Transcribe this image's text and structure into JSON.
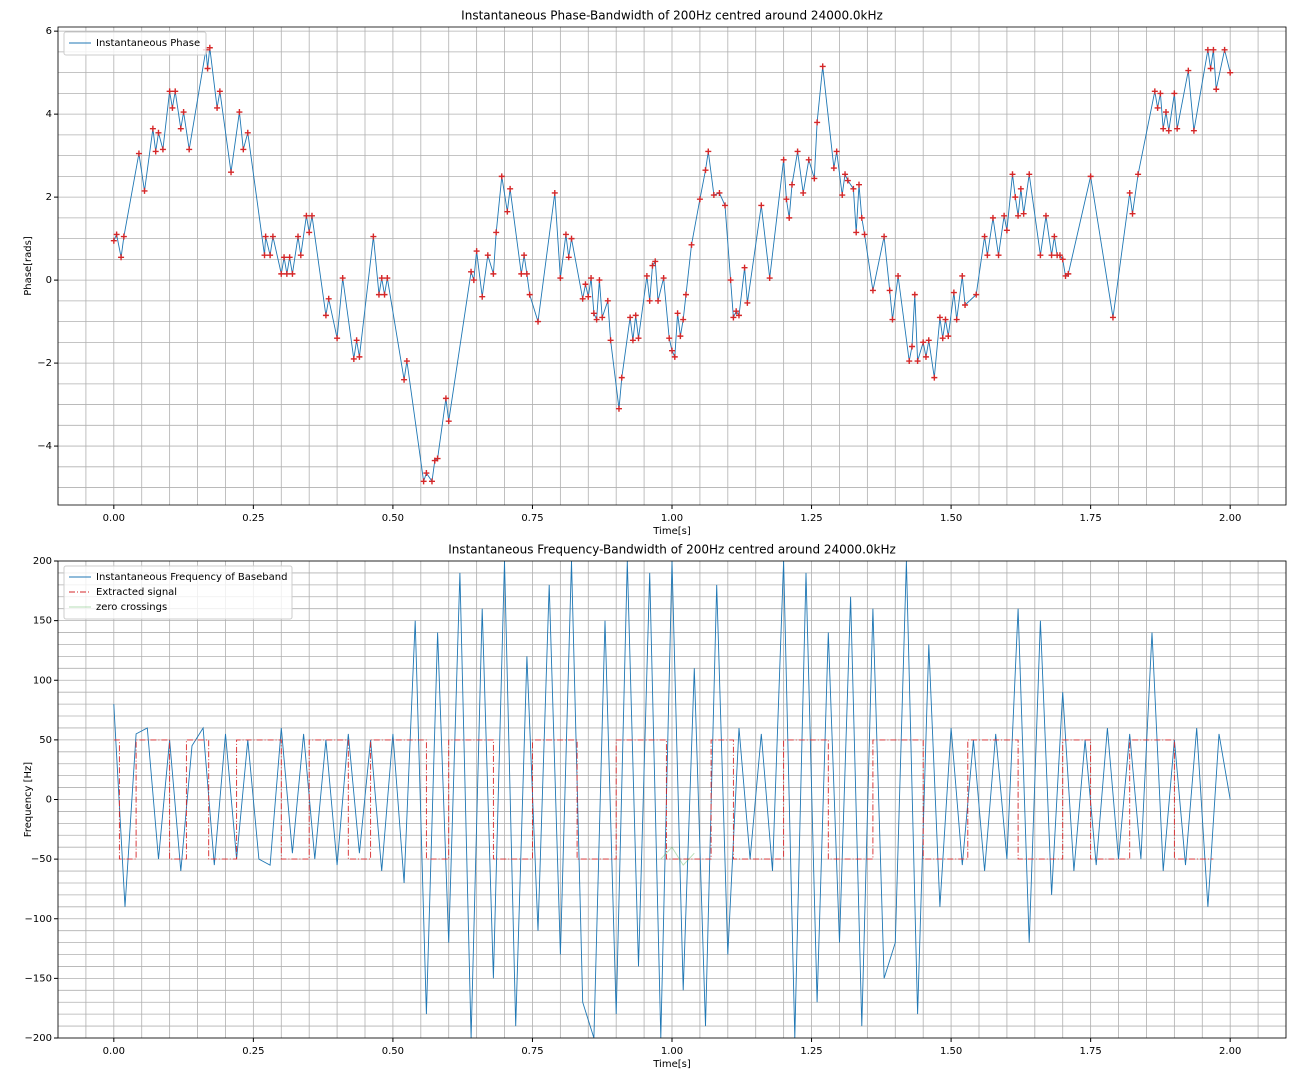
{
  "chart_data": [
    {
      "type": "line",
      "title": "Instantaneous Phase-Bandwidth of 200Hz centred around 24000.0kHz",
      "xlabel": "Time[s]",
      "ylabel": "Phase[rads]",
      "xlim": [
        -0.1,
        2.1
      ],
      "ylim": [
        -5.42,
        6.1
      ],
      "xticks": [
        {
          "value": 0,
          "label": "0.00"
        },
        {
          "value": 0.25,
          "label": "0.25"
        },
        {
          "value": 0.5,
          "label": "0.50"
        },
        {
          "value": 0.75,
          "label": "0.75"
        },
        {
          "value": 1,
          "label": "1.00"
        },
        {
          "value": 1.25,
          "label": "1.25"
        },
        {
          "value": 1.5,
          "label": "1.50"
        },
        {
          "value": 1.75,
          "label": "1.75"
        },
        {
          "value": 2,
          "label": "2.00"
        }
      ],
      "yticks": [
        {
          "value": -4,
          "label": "−4"
        },
        {
          "value": -2,
          "label": "−2"
        },
        0,
        2,
        4,
        6
      ],
      "xminor": [
        -0.1,
        -0.05,
        0,
        0.05,
        0.1,
        0.15,
        0.2,
        0.25,
        0.3,
        0.35,
        0.4,
        0.45,
        0.5,
        0.55,
        0.6,
        0.65,
        0.7,
        0.75,
        0.8,
        0.85,
        0.9,
        0.95,
        1,
        1.05,
        1.1,
        1.15,
        1.2,
        1.25,
        1.3,
        1.35,
        1.4,
        1.45,
        1.5,
        1.55,
        1.6,
        1.65,
        1.7,
        1.75,
        1.8,
        1.85,
        1.9,
        1.95,
        2,
        2.05,
        2.1
      ],
      "yminor": [
        -5,
        -4.5,
        -4,
        -3.5,
        -3,
        -2.5,
        -2,
        -1.5,
        -1,
        -0.5,
        0,
        0.5,
        1,
        1.5,
        2,
        2.5,
        3,
        3.5,
        4,
        4.5,
        5,
        5.5,
        6
      ],
      "grid": true,
      "legend": "upper left",
      "series": [
        {
          "name": "Instantaneous Phase",
          "color": "#1f77b4",
          "marker_color": "#d62728",
          "markers": true,
          "x": [
            0,
            0.005,
            0.013,
            0.018,
            0.045,
            0.055,
            0.07,
            0.075,
            0.08,
            0.088,
            0.1,
            0.105,
            0.11,
            0.12,
            0.125,
            0.135,
            0.165,
            0.168,
            0.172,
            0.185,
            0.19,
            0.21,
            0.225,
            0.232,
            0.24,
            0.27,
            0.272,
            0.28,
            0.285,
            0.3,
            0.305,
            0.31,
            0.315,
            0.32,
            0.33,
            0.335,
            0.345,
            0.35,
            0.355,
            0.38,
            0.385,
            0.4,
            0.41,
            0.43,
            0.435,
            0.44,
            0.465,
            0.475,
            0.48,
            0.485,
            0.49,
            0.52,
            0.525,
            0.555,
            0.56,
            0.57,
            0.575,
            0.58,
            0.595,
            0.6,
            0.64,
            0.645,
            0.65,
            0.66,
            0.67,
            0.68,
            0.685,
            0.695,
            0.705,
            0.71,
            0.73,
            0.735,
            0.74,
            0.745,
            0.76,
            0.79,
            0.8,
            0.81,
            0.815,
            0.82,
            0.84,
            0.845,
            0.85,
            0.855,
            0.86,
            0.865,
            0.87,
            0.875,
            0.885,
            0.89,
            0.905,
            0.91,
            0.925,
            0.93,
            0.935,
            0.94,
            0.955,
            0.96,
            0.965,
            0.97,
            0.975,
            0.985,
            0.995,
            1,
            1.005,
            1.01,
            1.015,
            1.02,
            1.025,
            1.035,
            1.05,
            1.06,
            1.065,
            1.075,
            1.085,
            1.095,
            1.105,
            1.11,
            1.115,
            1.12,
            1.13,
            1.135,
            1.16,
            1.175,
            1.2,
            1.205,
            1.21,
            1.215,
            1.225,
            1.235,
            1.245,
            1.255,
            1.26,
            1.27,
            1.29,
            1.295,
            1.305,
            1.31,
            1.315,
            1.325,
            1.33,
            1.335,
            1.34,
            1.345,
            1.36,
            1.38,
            1.39,
            1.395,
            1.405,
            1.425,
            1.43,
            1.435,
            1.44,
            1.45,
            1.455,
            1.46,
            1.47,
            1.48,
            1.485,
            1.49,
            1.495,
            1.505,
            1.51,
            1.52,
            1.525,
            1.545,
            1.56,
            1.565,
            1.575,
            1.585,
            1.595,
            1.6,
            1.61,
            1.615,
            1.62,
            1.625,
            1.63,
            1.64,
            1.66,
            1.67,
            1.68,
            1.685,
            1.69,
            1.695,
            1.7,
            1.705,
            1.71,
            1.75,
            1.79,
            1.82,
            1.825,
            1.835,
            1.865,
            1.87,
            1.875,
            1.88,
            1.885,
            1.89,
            1.9,
            1.905,
            1.925,
            1.935,
            1.96,
            1.965,
            1.97,
            1.975,
            1.99,
            2
          ],
          "values": [
            0.95,
            1.1,
            0.55,
            1.05,
            3.05,
            2.15,
            3.65,
            3.1,
            3.55,
            3.15,
            4.55,
            4.15,
            4.55,
            3.65,
            4.05,
            3.15,
            5.55,
            5.1,
            5.6,
            4.15,
            4.55,
            2.6,
            4.05,
            3.15,
            3.55,
            0.6,
            1.05,
            0.6,
            1.05,
            0.15,
            0.55,
            0.15,
            0.55,
            0.15,
            1.05,
            0.6,
            1.55,
            1.15,
            1.55,
            -0.85,
            -0.45,
            -1.4,
            0.05,
            -1.9,
            -1.45,
            -1.85,
            1.05,
            -0.35,
            0.05,
            -0.35,
            0.05,
            -2.4,
            -1.95,
            -4.85,
            -4.65,
            -4.85,
            -4.35,
            -4.3,
            -2.85,
            -3.4,
            0.2,
            0,
            0.7,
            -0.4,
            0.6,
            0.15,
            1.15,
            2.5,
            1.65,
            2.2,
            0.15,
            0.6,
            0.15,
            -0.35,
            -1,
            2.1,
            0.05,
            1.1,
            0.55,
            1,
            -0.45,
            -0.1,
            -0.4,
            0.05,
            -0.8,
            -0.95,
            0,
            -0.9,
            -0.5,
            -1.45,
            -3.1,
            -2.35,
            -0.9,
            -1.45,
            -0.85,
            -1.4,
            0.1,
            -0.5,
            0.35,
            0.45,
            -0.5,
            0.05,
            -1.4,
            -1.7,
            -1.85,
            -0.8,
            -1.35,
            -0.95,
            -0.35,
            0.85,
            1.95,
            2.65,
            3.1,
            2.05,
            2.1,
            1.8,
            0,
            -0.9,
            -0.75,
            -0.85,
            0.3,
            -0.55,
            1.8,
            0.05,
            2.9,
            1.95,
            1.5,
            2.3,
            3.1,
            2.1,
            2.9,
            2.45,
            3.8,
            5.15,
            2.7,
            3.1,
            2.05,
            2.55,
            2.4,
            2.2,
            1.15,
            2.3,
            1.5,
            1.1,
            -0.25,
            1.05,
            -0.25,
            -0.95,
            0.1,
            -1.95,
            -1.6,
            -0.35,
            -1.95,
            -1.5,
            -1.85,
            -1.45,
            -2.35,
            -0.9,
            -1.4,
            -0.95,
            -1.35,
            -0.3,
            -0.95,
            0.1,
            -0.6,
            -0.35,
            1.05,
            0.6,
            1.5,
            0.6,
            1.55,
            1.2,
            2.55,
            2,
            1.55,
            2.2,
            1.6,
            2.55,
            0.6,
            1.55,
            0.6,
            1.05,
            0.6,
            0.6,
            0.5,
            0.1,
            0.15,
            2.5,
            -0.9,
            2.1,
            1.6,
            2.55,
            4.55,
            4.15,
            4.5,
            3.65,
            4.05,
            3.6,
            4.5,
            3.65,
            5.05,
            3.6,
            5.55,
            5.1,
            5.55,
            4.6,
            5.55,
            5
          ]
        }
      ]
    },
    {
      "type": "line",
      "title": "Instantaneous Frequency-Bandwidth of 200Hz centred around 24000.0kHz",
      "xlabel": "Time[s]",
      "ylabel": "Frequency [Hz]",
      "xlim": [
        -0.1,
        2.1
      ],
      "ylim": [
        -200,
        200
      ],
      "xticks": [
        {
          "value": 0,
          "label": "0.00"
        },
        {
          "value": 0.25,
          "label": "0.25"
        },
        {
          "value": 0.5,
          "label": "0.50"
        },
        {
          "value": 0.75,
          "label": "0.75"
        },
        {
          "value": 1,
          "label": "1.00"
        },
        {
          "value": 1.25,
          "label": "1.25"
        },
        {
          "value": 1.5,
          "label": "1.50"
        },
        {
          "value": 1.75,
          "label": "1.75"
        },
        {
          "value": 2,
          "label": "2.00"
        }
      ],
      "yticks": [
        {
          "value": -200,
          "label": "−200"
        },
        {
          "value": -150,
          "label": "−150"
        },
        {
          "value": -100,
          "label": "−100"
        },
        {
          "value": -50,
          "label": "−50"
        },
        0,
        50,
        100,
        150,
        200
      ],
      "xminor": [
        -0.1,
        -0.05,
        0,
        0.05,
        0.1,
        0.15,
        0.2,
        0.25,
        0.3,
        0.35,
        0.4,
        0.45,
        0.5,
        0.55,
        0.6,
        0.65,
        0.7,
        0.75,
        0.8,
        0.85,
        0.9,
        0.95,
        1,
        1.05,
        1.1,
        1.15,
        1.2,
        1.25,
        1.3,
        1.35,
        1.4,
        1.45,
        1.5,
        1.55,
        1.6,
        1.65,
        1.7,
        1.75,
        1.8,
        1.85,
        1.9,
        1.95,
        2,
        2.05,
        2.1
      ],
      "yminor": [
        -200,
        -190,
        -180,
        -170,
        -160,
        -150,
        -140,
        -130,
        -120,
        -110,
        -100,
        -90,
        -80,
        -70,
        -60,
        -50,
        -40,
        -30,
        -20,
        -10,
        0,
        10,
        20,
        30,
        40,
        50,
        60,
        70,
        80,
        90,
        100,
        110,
        120,
        130,
        140,
        150,
        160,
        170,
        180,
        190,
        200
      ],
      "grid": true,
      "legend": "upper left",
      "series": [
        {
          "name": "Instantaneous Frequency of Baseband",
          "color": "#1f77b4",
          "style": "solid",
          "x": [
            0,
            0.02,
            0.04,
            0.06,
            0.08,
            0.1,
            0.12,
            0.14,
            0.16,
            0.18,
            0.2,
            0.22,
            0.24,
            0.26,
            0.28,
            0.3,
            0.32,
            0.34,
            0.36,
            0.38,
            0.4,
            0.42,
            0.44,
            0.46,
            0.48,
            0.5,
            0.52,
            0.54,
            0.56,
            0.58,
            0.6,
            0.62,
            0.64,
            0.66,
            0.68,
            0.7,
            0.72,
            0.74,
            0.76,
            0.78,
            0.8,
            0.82,
            0.84,
            0.86,
            0.88,
            0.9,
            0.92,
            0.94,
            0.96,
            0.98,
            1,
            1.02,
            1.04,
            1.06,
            1.08,
            1.1,
            1.12,
            1.14,
            1.16,
            1.18,
            1.2,
            1.22,
            1.24,
            1.26,
            1.28,
            1.3,
            1.32,
            1.34,
            1.36,
            1.38,
            1.4,
            1.42,
            1.44,
            1.46,
            1.48,
            1.5,
            1.52,
            1.54,
            1.56,
            1.58,
            1.6,
            1.62,
            1.64,
            1.66,
            1.68,
            1.7,
            1.72,
            1.74,
            1.76,
            1.78,
            1.8,
            1.82,
            1.84,
            1.86,
            1.88,
            1.9,
            1.92,
            1.94,
            1.96,
            1.98,
            2
          ],
          "values": [
            80,
            -90,
            55,
            60,
            -50,
            50,
            -60,
            45,
            60,
            -55,
            55,
            -50,
            50,
            -50,
            -55,
            60,
            -45,
            55,
            -50,
            50,
            -55,
            55,
            -45,
            50,
            -60,
            55,
            -70,
            150,
            -180,
            140,
            -120,
            190,
            -200,
            160,
            -150,
            200,
            -190,
            120,
            -110,
            180,
            -130,
            200,
            -170,
            -200,
            150,
            -180,
            200,
            -140,
            190,
            -200,
            200,
            -160,
            110,
            -190,
            180,
            -130,
            60,
            -50,
            55,
            -60,
            200,
            -200,
            190,
            -170,
            140,
            -120,
            170,
            -190,
            160,
            -150,
            -120,
            200,
            -180,
            130,
            -90,
            60,
            -55,
            50,
            -60,
            55,
            -50,
            160,
            -120,
            150,
            -80,
            90,
            -60,
            50,
            -55,
            60,
            -50,
            55,
            -50,
            140,
            -60,
            50,
            -55,
            60,
            -90,
            55,
            0
          ]
        },
        {
          "name": "Extracted signal",
          "color": "#d62728",
          "style": "dashdot",
          "x": [
            0,
            0.01,
            0.01,
            0.04,
            0.04,
            0.1,
            0.1,
            0.13,
            0.13,
            0.17,
            0.17,
            0.22,
            0.22,
            0.3,
            0.3,
            0.35,
            0.35,
            0.42,
            0.42,
            0.46,
            0.46,
            0.56,
            0.56,
            0.6,
            0.6,
            0.68,
            0.68,
            0.75,
            0.75,
            0.83,
            0.83,
            0.9,
            0.9,
            0.99,
            0.99,
            1.07,
            1.07,
            1.11,
            1.11,
            1.2,
            1.2,
            1.28,
            1.28,
            1.36,
            1.36,
            1.45,
            1.45,
            1.53,
            1.53,
            1.62,
            1.62,
            1.7,
            1.7,
            1.75,
            1.75,
            1.82,
            1.82,
            1.9,
            1.9,
            1.97
          ],
          "values": [
            50,
            50,
            -50,
            -50,
            50,
            50,
            -50,
            -50,
            50,
            50,
            -50,
            -50,
            50,
            50,
            -50,
            -50,
            50,
            50,
            -50,
            -50,
            50,
            50,
            -50,
            -50,
            50,
            50,
            -50,
            -50,
            50,
            50,
            -50,
            -50,
            50,
            50,
            -50,
            -50,
            50,
            50,
            -50,
            -50,
            50,
            50,
            -50,
            -50,
            50,
            50,
            -50,
            -50,
            50,
            50,
            -50,
            -50,
            50,
            50,
            -50,
            -50,
            50,
            50,
            -50,
            -50
          ]
        },
        {
          "name": "zero crossings",
          "color": "#2ca02c",
          "style": "faint",
          "x": [
            0.98,
            1,
            1.02,
            1.04
          ],
          "values": [
            -50,
            -40,
            -55,
            -45
          ]
        }
      ]
    }
  ]
}
